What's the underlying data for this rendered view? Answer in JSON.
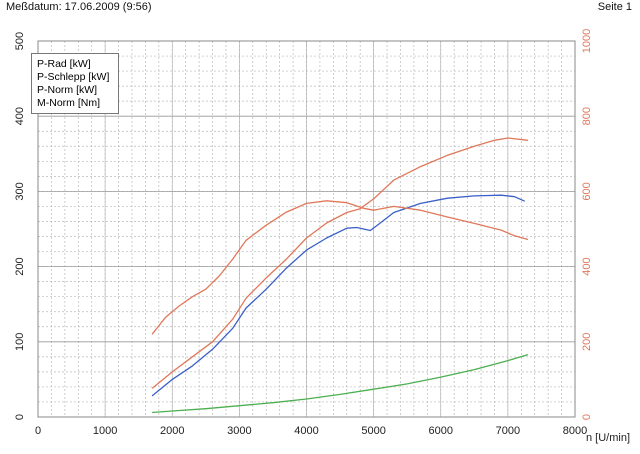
{
  "header": {
    "left_text": "Meßdatum: 17.06.2009 (9:56)",
    "right_text": "Seite 1"
  },
  "colors": {
    "p_rad": "#3a5fc8",
    "p_schlepp": "#4caf50",
    "p_norm": "#e0785a",
    "m_norm": "#e0785a",
    "grid": "#b9b9b9",
    "frame": "#8a8a8a",
    "left_axis_text": "#222222",
    "right_axis_text": "#e0785a"
  },
  "chart_data": {
    "type": "line",
    "xlabel": "n [U/min]",
    "xlim": [
      0,
      8000
    ],
    "x_ticks": [
      "0",
      "1000",
      "2000",
      "3000",
      "4000",
      "5000",
      "6000",
      "7000",
      "8000"
    ],
    "y_left": {
      "lim": [
        0,
        500
      ],
      "ticks": [
        "0",
        "100",
        "200",
        "300",
        "400",
        "500"
      ]
    },
    "y_right": {
      "lim": [
        0,
        1000
      ],
      "ticks": [
        "0",
        "200",
        "400",
        "600",
        "800",
        "1000"
      ]
    },
    "grid": true,
    "legend_position": "top-left",
    "series": [
      {
        "name": "P-Rad [kW]",
        "axis": "left",
        "color": "#3a5fc8",
        "points": [
          [
            1700,
            28
          ],
          [
            2000,
            50
          ],
          [
            2300,
            68
          ],
          [
            2600,
            90
          ],
          [
            2900,
            118
          ],
          [
            3100,
            145
          ],
          [
            3400,
            170
          ],
          [
            3700,
            198
          ],
          [
            4000,
            222
          ],
          [
            4300,
            238
          ],
          [
            4600,
            251
          ],
          [
            4750,
            252
          ],
          [
            4950,
            248
          ],
          [
            5100,
            258
          ],
          [
            5300,
            272
          ],
          [
            5700,
            284
          ],
          [
            6100,
            291
          ],
          [
            6500,
            294
          ],
          [
            6900,
            295
          ],
          [
            7100,
            293
          ],
          [
            7250,
            287
          ]
        ]
      },
      {
        "name": "P-Schlepp [kW]",
        "axis": "left",
        "color": "#4caf50",
        "points": [
          [
            1700,
            6
          ],
          [
            2000,
            8
          ],
          [
            2500,
            11
          ],
          [
            3000,
            15
          ],
          [
            3500,
            19
          ],
          [
            4000,
            24
          ],
          [
            4500,
            30
          ],
          [
            5000,
            37
          ],
          [
            5500,
            44
          ],
          [
            6000,
            53
          ],
          [
            6500,
            63
          ],
          [
            7000,
            75
          ],
          [
            7300,
            83
          ]
        ]
      },
      {
        "name": "P-Norm [kW]",
        "axis": "left",
        "color": "#e0785a",
        "points": [
          [
            1700,
            38
          ],
          [
            2000,
            60
          ],
          [
            2300,
            80
          ],
          [
            2600,
            100
          ],
          [
            2900,
            130
          ],
          [
            3100,
            158
          ],
          [
            3400,
            185
          ],
          [
            3700,
            210
          ],
          [
            4000,
            238
          ],
          [
            4300,
            258
          ],
          [
            4600,
            272
          ],
          [
            4800,
            277
          ],
          [
            5000,
            290
          ],
          [
            5300,
            315
          ],
          [
            5700,
            333
          ],
          [
            6100,
            348
          ],
          [
            6500,
            360
          ],
          [
            6800,
            368
          ],
          [
            7000,
            371
          ],
          [
            7300,
            368
          ]
        ]
      },
      {
        "name": "M-Norm [Nm]",
        "axis": "right",
        "color": "#e0785a",
        "points": [
          [
            1700,
            220
          ],
          [
            1900,
            265
          ],
          [
            2100,
            295
          ],
          [
            2300,
            320
          ],
          [
            2500,
            340
          ],
          [
            2700,
            375
          ],
          [
            2900,
            420
          ],
          [
            3100,
            470
          ],
          [
            3400,
            510
          ],
          [
            3700,
            545
          ],
          [
            4000,
            568
          ],
          [
            4300,
            575
          ],
          [
            4600,
            570
          ],
          [
            4850,
            555
          ],
          [
            5000,
            550
          ],
          [
            5300,
            560
          ],
          [
            5700,
            550
          ],
          [
            6100,
            532
          ],
          [
            6500,
            515
          ],
          [
            6900,
            497
          ],
          [
            7100,
            482
          ],
          [
            7300,
            472
          ]
        ]
      }
    ]
  }
}
